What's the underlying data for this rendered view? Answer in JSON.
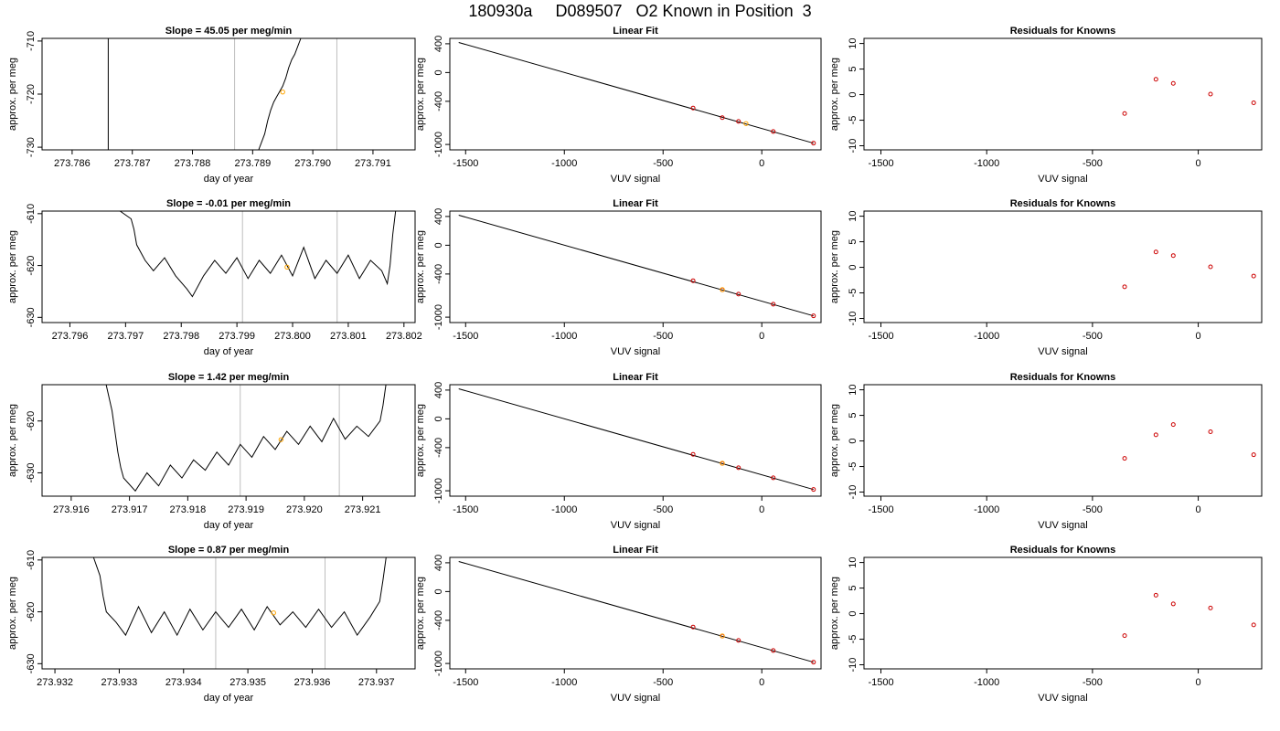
{
  "title": "180930a     D089507   O2 Known in Position  3",
  "colors": {
    "trace": "#000000",
    "point_red": "#cc0000",
    "point_orange": "#ffa500",
    "vline": "#bebebe",
    "frame": "#000000"
  },
  "chart_data": [
    {
      "type": "line",
      "title": "Slope =  45.05  per meg/min",
      "xlabel": "day of year",
      "ylabel": "approx. per meg",
      "xlim": [
        273.7855,
        273.7917
      ],
      "ylim": [
        -730.5,
        -709.5
      ],
      "xticks": [
        "273.786",
        "273.787",
        "273.788",
        "273.789",
        "273.790",
        "273.791"
      ],
      "xtick_values": [
        273.786,
        273.787,
        273.788,
        273.789,
        273.79,
        273.791
      ],
      "yticks": [
        "-730",
        "-720",
        "-710"
      ],
      "ytick_values": [
        -730,
        -720,
        -710
      ],
      "vlines_dark": [
        273.7866
      ],
      "vlines": [
        273.7887,
        273.7904
      ],
      "trace": [
        [
          273.7891,
          -730.5
        ],
        [
          273.7892,
          -727.5
        ],
        [
          273.78925,
          -725
        ],
        [
          273.7893,
          -723
        ],
        [
          273.78935,
          -721.5
        ],
        [
          273.7894,
          -720.5
        ],
        [
          273.78945,
          -719.5
        ],
        [
          273.7895,
          -718.5
        ],
        [
          273.78955,
          -717
        ],
        [
          273.7896,
          -715
        ],
        [
          273.78965,
          -713.5
        ],
        [
          273.7897,
          -712.5
        ],
        [
          273.78975,
          -711
        ],
        [
          273.7898,
          -709.5
        ]
      ],
      "highlight": [
        273.7895,
        -719.6
      ]
    },
    {
      "type": "scatter",
      "title": "Linear Fit",
      "xlabel": "VUV signal",
      "ylabel": "approx. per meg",
      "xlim": [
        -1580,
        300
      ],
      "ylim": [
        -1075,
        475
      ],
      "xticks": [
        "-1500",
        "-1000",
        "-500",
        "0"
      ],
      "xtick_values": [
        -1500,
        -1000,
        -500,
        0
      ],
      "yticks": [
        "400",
        "0",
        "-400",
        "-1000"
      ],
      "ytick_values": [
        400,
        0,
        -400,
        -1000
      ],
      "fit_line": [
        [
          -1535,
          418
        ],
        [
          262,
          -982
        ]
      ],
      "points": [
        [
          -348,
          -493
        ],
        [
          -200,
          -627
        ],
        [
          -118,
          -680
        ],
        [
          58,
          -820
        ],
        [
          262,
          -982
        ]
      ],
      "highlight": [
        -80,
        -710
      ]
    },
    {
      "type": "scatter",
      "title": "Residuals for Knowns",
      "xlabel": "VUV signal",
      "ylabel": "approx. per meg",
      "xlim": [
        -1580,
        300
      ],
      "ylim": [
        -10.8,
        11
      ],
      "xticks": [
        "-1500",
        "-1000",
        "-500",
        "0"
      ],
      "xtick_values": [
        -1500,
        -1000,
        -500,
        0
      ],
      "yticks": [
        "-10",
        "-5",
        "0",
        "5",
        "10"
      ],
      "ytick_values": [
        -10,
        -5,
        0,
        5,
        10
      ],
      "points": [
        [
          -348,
          -3.7
        ],
        [
          -200,
          3.0
        ],
        [
          -118,
          2.2
        ],
        [
          58,
          0.1
        ],
        [
          262,
          -1.6
        ]
      ]
    },
    {
      "type": "line",
      "title": "Slope =  -0.01  per meg/min",
      "xlabel": "day of year",
      "ylabel": "approx. per meg",
      "xlim": [
        273.7955,
        273.8022
      ],
      "ylim": [
        -631,
        -609.5
      ],
      "xticks": [
        "273.796",
        "273.797",
        "273.798",
        "273.799",
        "273.800",
        "273.801",
        "273.802"
      ],
      "xtick_values": [
        273.796,
        273.797,
        273.798,
        273.799,
        273.8,
        273.801,
        273.802
      ],
      "yticks": [
        "-630",
        "-620",
        "-610"
      ],
      "ytick_values": [
        -630,
        -620,
        -610
      ],
      "vlines": [
        273.7991,
        273.8008
      ],
      "trace": [
        [
          273.7969,
          -609.5
        ],
        [
          273.7971,
          -611
        ],
        [
          273.79715,
          -613
        ],
        [
          273.7972,
          -616
        ],
        [
          273.79735,
          -619
        ],
        [
          273.7975,
          -621
        ],
        [
          273.7977,
          -618.5
        ],
        [
          273.7979,
          -622
        ],
        [
          273.7981,
          -624.5
        ],
        [
          273.7982,
          -626
        ],
        [
          273.7984,
          -622
        ],
        [
          273.7986,
          -619
        ],
        [
          273.7988,
          -621.5
        ],
        [
          273.799,
          -618.5
        ],
        [
          273.7992,
          -622.5
        ],
        [
          273.7994,
          -619
        ],
        [
          273.7996,
          -621.5
        ],
        [
          273.7998,
          -618
        ],
        [
          273.8,
          -622
        ],
        [
          273.8002,
          -616.5
        ],
        [
          273.8004,
          -622.5
        ],
        [
          273.8006,
          -619
        ],
        [
          273.8008,
          -621.5
        ],
        [
          273.801,
          -618
        ],
        [
          273.8012,
          -622.5
        ],
        [
          273.8014,
          -619
        ],
        [
          273.8016,
          -621
        ],
        [
          273.8017,
          -623.5
        ],
        [
          273.80175,
          -620
        ],
        [
          273.8018,
          -614
        ],
        [
          273.80185,
          -609.5
        ]
      ],
      "highlight": [
        273.7999,
        -620.3
      ]
    },
    {
      "type": "scatter",
      "title": "Linear Fit",
      "xlabel": "VUV signal",
      "ylabel": "approx. per meg",
      "xlim": [
        -1580,
        300
      ],
      "ylim": [
        -1075,
        475
      ],
      "xticks": [
        "-1500",
        "-1000",
        "-500",
        "0"
      ],
      "xtick_values": [
        -1500,
        -1000,
        -500,
        0
      ],
      "yticks": [
        "400",
        "0",
        "-400",
        "-1000"
      ],
      "ytick_values": [
        400,
        0,
        -400,
        -1000
      ],
      "fit_line": [
        [
          -1535,
          418
        ],
        [
          262,
          -982
        ]
      ],
      "points": [
        [
          -348,
          -493
        ],
        [
          -200,
          -620
        ],
        [
          -118,
          -680
        ],
        [
          58,
          -820
        ],
        [
          262,
          -982
        ]
      ],
      "highlight": [
        -200,
        -617
      ]
    },
    {
      "type": "scatter",
      "title": "Residuals for Knowns",
      "xlabel": "VUV signal",
      "ylabel": "approx. per meg",
      "xlim": [
        -1580,
        300
      ],
      "ylim": [
        -10.8,
        11
      ],
      "xticks": [
        "-1500",
        "-1000",
        "-500",
        "0"
      ],
      "xtick_values": [
        -1500,
        -1000,
        -500,
        0
      ],
      "yticks": [
        "-10",
        "-5",
        "0",
        "5",
        "10"
      ],
      "ytick_values": [
        -10,
        -5,
        0,
        5,
        10
      ],
      "points": [
        [
          -348,
          -3.8
        ],
        [
          -200,
          3.0
        ],
        [
          -118,
          2.3
        ],
        [
          58,
          0.1
        ],
        [
          262,
          -1.7
        ]
      ]
    },
    {
      "type": "line",
      "title": "Slope =  1.42  per meg/min",
      "xlabel": "day of year",
      "ylabel": "approx. per meg",
      "xlim": [
        273.9155,
        273.9219
      ],
      "ylim": [
        -634.5,
        -613
      ],
      "xticks": [
        "273.916",
        "273.917",
        "273.918",
        "273.919",
        "273.920",
        "273.921"
      ],
      "xtick_values": [
        273.916,
        273.917,
        273.918,
        273.919,
        273.92,
        273.921
      ],
      "yticks": [
        "-630",
        "-620"
      ],
      "ytick_values": [
        -630,
        -620
      ],
      "vlines": [
        273.9189,
        273.9206
      ],
      "trace": [
        [
          273.9166,
          -613
        ],
        [
          273.9167,
          -618
        ],
        [
          273.91675,
          -622
        ],
        [
          273.9168,
          -626
        ],
        [
          273.91685,
          -629
        ],
        [
          273.9169,
          -631
        ],
        [
          273.9171,
          -633.5
        ],
        [
          273.9173,
          -630
        ],
        [
          273.9175,
          -632.5
        ],
        [
          273.9177,
          -628.5
        ],
        [
          273.9179,
          -631
        ],
        [
          273.9181,
          -627.5
        ],
        [
          273.9183,
          -629.5
        ],
        [
          273.9185,
          -626
        ],
        [
          273.9187,
          -628.5
        ],
        [
          273.9189,
          -624.5
        ],
        [
          273.9191,
          -627
        ],
        [
          273.9193,
          -623
        ],
        [
          273.9195,
          -625.5
        ],
        [
          273.9197,
          -622
        ],
        [
          273.9199,
          -624.5
        ],
        [
          273.9201,
          -621
        ],
        [
          273.9203,
          -624
        ],
        [
          273.9205,
          -619.5
        ],
        [
          273.9207,
          -623.5
        ],
        [
          273.9209,
          -621
        ],
        [
          273.9211,
          -623
        ],
        [
          273.9213,
          -620
        ],
        [
          273.92135,
          -617
        ],
        [
          273.9214,
          -613
        ]
      ],
      "highlight": [
        273.9196,
        -623.6
      ]
    },
    {
      "type": "scatter",
      "title": "Linear Fit",
      "xlabel": "VUV signal",
      "ylabel": "approx. per meg",
      "xlim": [
        -1580,
        300
      ],
      "ylim": [
        -1075,
        475
      ],
      "xticks": [
        "-1500",
        "-1000",
        "-500",
        "0"
      ],
      "xtick_values": [
        -1500,
        -1000,
        -500,
        0
      ],
      "yticks": [
        "400",
        "0",
        "-400",
        "-1000"
      ],
      "ytick_values": [
        400,
        0,
        -400,
        -1000
      ],
      "fit_line": [
        [
          -1535,
          418
        ],
        [
          262,
          -982
        ]
      ],
      "points": [
        [
          -348,
          -493
        ],
        [
          -200,
          -620
        ],
        [
          -118,
          -680
        ],
        [
          58,
          -820
        ],
        [
          262,
          -982
        ]
      ],
      "highlight": [
        -200,
        -617
      ]
    },
    {
      "type": "scatter",
      "title": "Residuals for Knowns",
      "xlabel": "VUV signal",
      "ylabel": "approx. per meg",
      "xlim": [
        -1580,
        300
      ],
      "ylim": [
        -10.8,
        11
      ],
      "xticks": [
        "-1500",
        "-1000",
        "-500",
        "0"
      ],
      "xtick_values": [
        -1500,
        -1000,
        -500,
        0
      ],
      "yticks": [
        "-10",
        "-5",
        "0",
        "5",
        "10"
      ],
      "ytick_values": [
        -10,
        -5,
        0,
        5,
        10
      ],
      "points": [
        [
          -348,
          -3.4
        ],
        [
          -200,
          1.2
        ],
        [
          -118,
          3.2
        ],
        [
          58,
          1.8
        ],
        [
          262,
          -2.7
        ]
      ]
    },
    {
      "type": "line",
      "title": "Slope =  0.87  per meg/min",
      "xlabel": "day of year",
      "ylabel": "approx. per meg",
      "xlim": [
        273.9318,
        273.9376
      ],
      "ylim": [
        -631,
        -609.5
      ],
      "xticks": [
        "273.932",
        "273.933",
        "273.934",
        "273.935",
        "273.936",
        "273.937"
      ],
      "xtick_values": [
        273.932,
        273.933,
        273.934,
        273.935,
        273.936,
        273.937
      ],
      "yticks": [
        "-630",
        "-620",
        "-610"
      ],
      "ytick_values": [
        -630,
        -620,
        -610
      ],
      "vlines": [
        273.9345,
        273.9362
      ],
      "trace": [
        [
          273.9326,
          -609.5
        ],
        [
          273.9327,
          -613
        ],
        [
          273.93275,
          -617
        ],
        [
          273.9328,
          -620
        ],
        [
          273.93295,
          -622
        ],
        [
          273.9331,
          -624.5
        ],
        [
          273.9333,
          -619
        ],
        [
          273.9335,
          -624
        ],
        [
          273.9337,
          -620
        ],
        [
          273.9339,
          -624.5
        ],
        [
          273.9341,
          -619.5
        ],
        [
          273.9343,
          -623.5
        ],
        [
          273.9345,
          -620
        ],
        [
          273.9347,
          -623
        ],
        [
          273.9349,
          -619.5
        ],
        [
          273.9351,
          -623.5
        ],
        [
          273.9353,
          -619
        ],
        [
          273.9355,
          -622.5
        ],
        [
          273.9357,
          -620
        ],
        [
          273.9359,
          -623
        ],
        [
          273.9361,
          -619.5
        ],
        [
          273.9363,
          -623
        ],
        [
          273.9365,
          -620
        ],
        [
          273.9367,
          -624.5
        ],
        [
          273.9369,
          -621
        ],
        [
          273.93705,
          -618
        ],
        [
          273.9371,
          -614
        ],
        [
          273.93715,
          -609.5
        ]
      ],
      "highlight": [
        273.9354,
        -620.2
      ]
    },
    {
      "type": "scatter",
      "title": "Linear Fit",
      "xlabel": "VUV signal",
      "ylabel": "approx. per meg",
      "xlim": [
        -1580,
        300
      ],
      "ylim": [
        -1075,
        475
      ],
      "xticks": [
        "-1500",
        "-1000",
        "-500",
        "0"
      ],
      "xtick_values": [
        -1500,
        -1000,
        -500,
        0
      ],
      "yticks": [
        "400",
        "0",
        "-400",
        "-1000"
      ],
      "ytick_values": [
        400,
        0,
        -400,
        -1000
      ],
      "fit_line": [
        [
          -1535,
          418
        ],
        [
          262,
          -982
        ]
      ],
      "points": [
        [
          -348,
          -493
        ],
        [
          -200,
          -620
        ],
        [
          -118,
          -680
        ],
        [
          58,
          -820
        ],
        [
          262,
          -982
        ]
      ],
      "highlight": [
        -200,
        -617
      ]
    },
    {
      "type": "scatter",
      "title": "Residuals for Knowns",
      "xlabel": "VUV signal",
      "ylabel": "approx. per meg",
      "xlim": [
        -1580,
        300
      ],
      "ylim": [
        -10.8,
        11
      ],
      "xticks": [
        "-1500",
        "-1000",
        "-500",
        "0"
      ],
      "xtick_values": [
        -1500,
        -1000,
        -500,
        0
      ],
      "yticks": [
        "-10",
        "-5",
        "0",
        "5",
        "10"
      ],
      "ytick_values": [
        -10,
        -5,
        0,
        5,
        10
      ],
      "points": [
        [
          -348,
          -4.3
        ],
        [
          -200,
          3.6
        ],
        [
          -118,
          1.9
        ],
        [
          58,
          1.1
        ],
        [
          262,
          -2.2
        ]
      ]
    }
  ]
}
